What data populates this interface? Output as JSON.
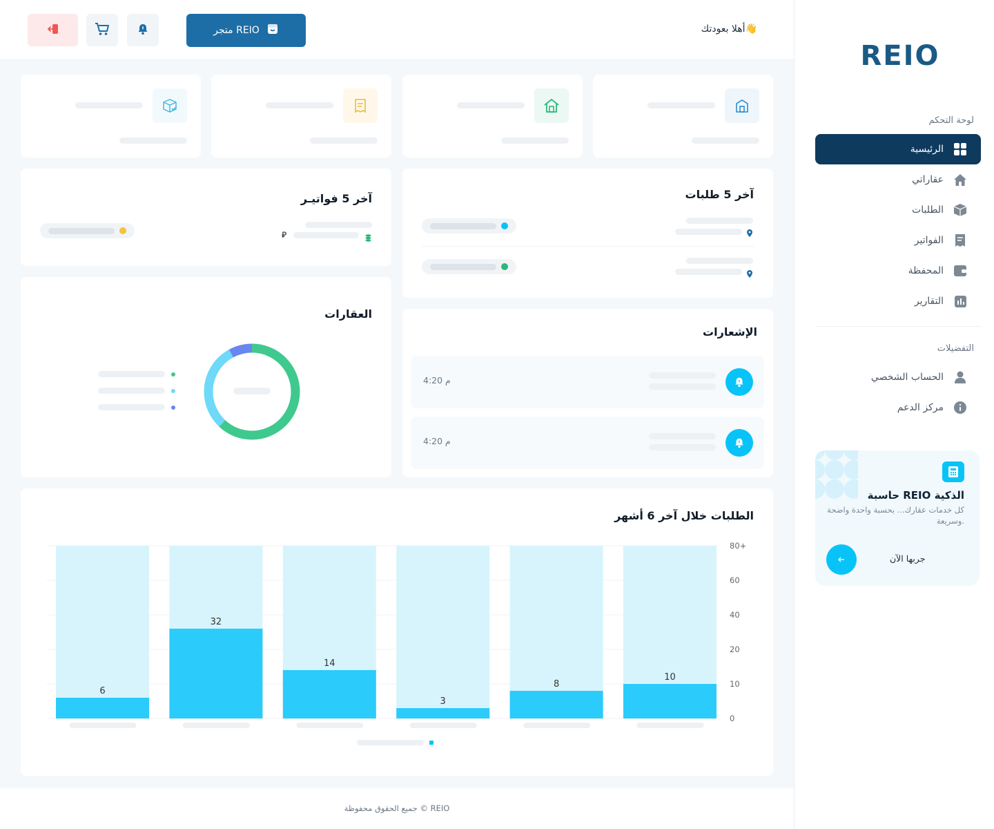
{
  "brand": {
    "logo_text": "REIO",
    "logo_color": "#1a5a84",
    "accent_color": "#0e3a5e"
  },
  "header": {
    "greeting": "أهلا بعودتك👋",
    "store_button": "متجر REIO",
    "notification_icon": "bell-icon",
    "cart_icon": "cart-icon",
    "logout_icon": "logout-icon"
  },
  "sidebar": {
    "section_dashboard": "لوحة التحكم",
    "items": [
      {
        "label": "الرئيسية",
        "icon": "grid-icon",
        "active": true
      },
      {
        "label": "عقاراتي",
        "icon": "home-icon",
        "active": false
      },
      {
        "label": "الطلبات",
        "icon": "box-icon",
        "active": false
      },
      {
        "label": "الفواتير",
        "icon": "receipt-icon",
        "active": false
      },
      {
        "label": "المحفظة",
        "icon": "wallet-icon",
        "active": false
      },
      {
        "label": "التقارير",
        "icon": "chart-icon",
        "active": false
      }
    ],
    "section_preferences": "التفضيلات",
    "pref_items": [
      {
        "label": "الحساب الشخصي",
        "icon": "user-icon"
      },
      {
        "label": "مركز الدعم",
        "icon": "info-icon"
      }
    ],
    "promo": {
      "title": "حاسبة REIO الذكية",
      "description": "كل خدمات عقارك... بحسبة واحدة واضحة وسريعة.",
      "cta": "جربها الآن"
    }
  },
  "cards": {
    "orders_title": "آخر 5 طلبات",
    "invoices_title": "آخر 5 فواتيـر",
    "notifications_title": "الإشعارات",
    "properties_title": "العقارات",
    "notifications": [
      {
        "time": "4:20 م"
      },
      {
        "time": "4:20 م"
      }
    ],
    "currency_symbol": "⃁"
  },
  "donut": {
    "segments": [
      {
        "value": 62,
        "color": "#3fc98e"
      },
      {
        "value": 30,
        "color": "#6ed9f8"
      },
      {
        "value": 8,
        "color": "#6a86ef"
      }
    ]
  },
  "chart_data": {
    "type": "bar",
    "title": "الطلبات خلال آخر 6 أشهر",
    "values": [
      6,
      32,
      14,
      3,
      8,
      10
    ],
    "y_ticks": [
      "0",
      "10",
      "20",
      "40",
      "60",
      "80+"
    ],
    "y_tick_values": [
      0,
      10,
      20,
      40,
      60,
      80
    ],
    "bar_color": "#2bcbfb",
    "background_bar_color": "#d7f4fd",
    "grid": true
  },
  "footer": {
    "text": "جميع الحقوق محفوظة © REIO"
  }
}
